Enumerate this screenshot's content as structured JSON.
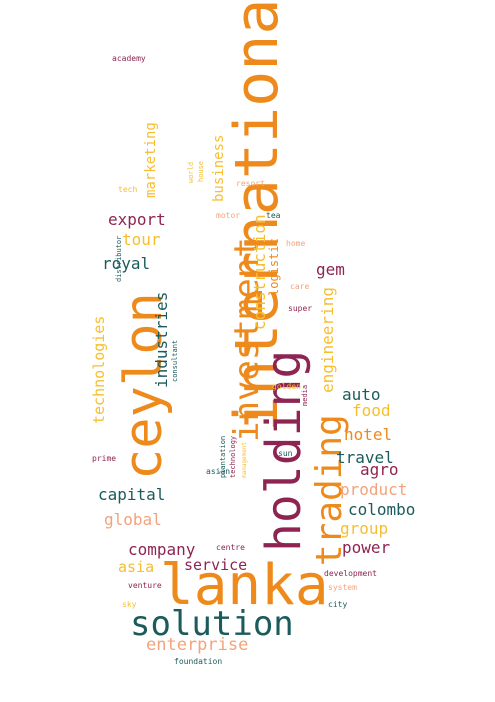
{
  "palette": {
    "maroon": "#8e2451",
    "orange": "#ee8a1c",
    "gold": "#f7be2f",
    "teal": "#1b5b5b",
    "peach": "#f3a37b"
  },
  "words": [
    {
      "text": "lanka",
      "color": "orange"
    },
    {
      "text": "international",
      "color": "orange"
    },
    {
      "text": "holding",
      "color": "maroon"
    },
    {
      "text": "ceylon",
      "color": "orange"
    },
    {
      "text": "solution",
      "color": "teal"
    },
    {
      "text": "trading",
      "color": "orange"
    },
    {
      "text": "investment",
      "color": "orange"
    },
    {
      "text": "enterprise",
      "color": "peach"
    },
    {
      "text": "construction",
      "color": "gold"
    },
    {
      "text": "engineering",
      "color": "gold"
    },
    {
      "text": "industries",
      "color": "teal"
    },
    {
      "text": "technologies",
      "color": "gold"
    },
    {
      "text": "marketing",
      "color": "gold"
    },
    {
      "text": "business",
      "color": "gold"
    },
    {
      "text": "logistic",
      "color": "orange"
    },
    {
      "text": "export",
      "color": "maroon"
    },
    {
      "text": "tour",
      "color": "gold"
    },
    {
      "text": "royal",
      "color": "teal"
    },
    {
      "text": "gem",
      "color": "maroon"
    },
    {
      "text": "auto",
      "color": "teal"
    },
    {
      "text": "food",
      "color": "gold"
    },
    {
      "text": "hotel",
      "color": "orange"
    },
    {
      "text": "travel",
      "color": "teal"
    },
    {
      "text": "agro",
      "color": "maroon"
    },
    {
      "text": "product",
      "color": "peach"
    },
    {
      "text": "capital",
      "color": "teal"
    },
    {
      "text": "colombo",
      "color": "teal"
    },
    {
      "text": "global",
      "color": "peach"
    },
    {
      "text": "group",
      "color": "gold"
    },
    {
      "text": "company",
      "color": "maroon"
    },
    {
      "text": "power",
      "color": "maroon"
    },
    {
      "text": "service",
      "color": "maroon"
    },
    {
      "text": "asia",
      "color": "gold"
    },
    {
      "text": "academy",
      "color": "maroon"
    },
    {
      "text": "tech",
      "color": "gold"
    },
    {
      "text": "resort",
      "color": "peach"
    },
    {
      "text": "world",
      "color": "gold"
    },
    {
      "text": "house",
      "color": "gold"
    },
    {
      "text": "motor",
      "color": "peach"
    },
    {
      "text": "tea",
      "color": "teal"
    },
    {
      "text": "home",
      "color": "peach"
    },
    {
      "text": "care",
      "color": "peach"
    },
    {
      "text": "super",
      "color": "maroon"
    },
    {
      "text": "distributor",
      "color": "teal"
    },
    {
      "text": "consultant",
      "color": "teal"
    },
    {
      "text": "golden",
      "color": "gold"
    },
    {
      "text": "media",
      "color": "maroon"
    },
    {
      "text": "sun",
      "color": "teal"
    },
    {
      "text": "asian",
      "color": "teal"
    },
    {
      "text": "prime",
      "color": "maroon"
    },
    {
      "text": "plantation",
      "color": "teal"
    },
    {
      "text": "technology",
      "color": "maroon"
    },
    {
      "text": "management",
      "color": "gold"
    },
    {
      "text": "centre",
      "color": "maroon"
    },
    {
      "text": "development",
      "color": "maroon"
    },
    {
      "text": "system",
      "color": "peach"
    },
    {
      "text": "venture",
      "color": "maroon"
    },
    {
      "text": "sky",
      "color": "gold"
    },
    {
      "text": "city",
      "color": "teal"
    },
    {
      "text": "foundation",
      "color": "teal"
    }
  ]
}
